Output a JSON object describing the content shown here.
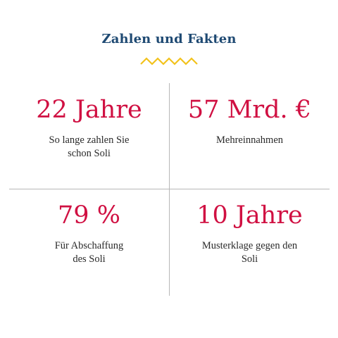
{
  "header": {
    "title": "Zahlen und Fakten"
  },
  "colors": {
    "title": "#1f4a73",
    "accent_zigzag": "#f2c21b",
    "value": "#d01042",
    "text": "#2a2a2a",
    "divider": "#b7b7b7"
  },
  "facts": [
    {
      "value": "22 Jahre",
      "description": "So lange zahlen Sie schon Soli"
    },
    {
      "value": "57 Mrd. €",
      "description": "Mehreinnahmen"
    },
    {
      "value": "79 %",
      "description": "Für Abschaffung des Soli"
    },
    {
      "value": "10 Jahre",
      "description": "Musterklage gegen den Soli"
    }
  ]
}
